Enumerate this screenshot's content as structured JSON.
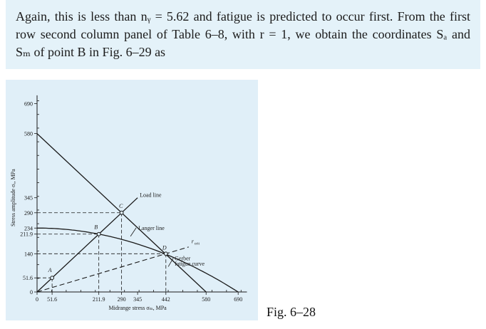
{
  "text_panel": {
    "line1": "Again, this is less than nᵧ = 5.62 and fatigue is predicted to occur first. From the first",
    "line2": "row second column panel of Table 6–8, with r = 1, we obtain the coordinates Sₐ and",
    "line3": "Sₘ of point B in Fig. 6–29 as"
  },
  "figure_caption": "Fig. 6–28",
  "chart_data": {
    "type": "line",
    "title": "",
    "xlabel": "Midrange stress σₘ, MPa",
    "ylabel": "Stress amplitude σₐ, MPa",
    "xlim": [
      0,
      720
    ],
    "ylim": [
      0,
      720
    ],
    "x_ticks": [
      0,
      51.6,
      211.9,
      290,
      345,
      442,
      580,
      690
    ],
    "x_tick_labels": [
      "0",
      "51.6",
      "211.9",
      "290",
      "345",
      "442",
      "580",
      "690"
    ],
    "y_ticks": [
      0,
      51.6,
      140,
      211.9,
      234,
      290,
      345,
      580,
      690
    ],
    "y_tick_labels": [
      "0",
      "51.6",
      "140",
      "211.9",
      "234",
      "290",
      "345",
      "580",
      "690"
    ],
    "series": [
      {
        "name": "Load line",
        "style": "solid",
        "x": [
          0,
          290,
          345
        ],
        "y": [
          0,
          290,
          345
        ]
      },
      {
        "name": "Langer line",
        "style": "solid",
        "x": [
          0,
          580
        ],
        "y": [
          580,
          0
        ]
      },
      {
        "name": "Gerber fatigue curve",
        "style": "solid",
        "x": [
          0,
          100,
          211.9,
          300,
          442,
          550,
          690
        ],
        "y": [
          234,
          229,
          211.9,
          190,
          140,
          85,
          0
        ]
      },
      {
        "name": "r crit",
        "style": "dashed",
        "x": [
          0,
          442,
          520
        ],
        "y": [
          0,
          140,
          164.7
        ]
      }
    ],
    "points": [
      {
        "label": "A",
        "x": 51.6,
        "y": 51.6
      },
      {
        "label": "B",
        "x": 211.9,
        "y": 211.9
      },
      {
        "label": "C",
        "x": 290,
        "y": 290
      },
      {
        "label": "D",
        "x": 442,
        "y": 140
      }
    ],
    "guides": [
      {
        "x": 51.6,
        "y": 51.6
      },
      {
        "x": 211.9,
        "y": 211.9
      },
      {
        "x": 290,
        "y": 290
      },
      {
        "x": 442,
        "y": 140
      }
    ],
    "annotations": [
      {
        "text": "Load line",
        "at": [
          345,
          345
        ]
      },
      {
        "text": "Langer line",
        "at": [
          345,
          235
        ]
      },
      {
        "text": "Gerber",
        "at": [
          460,
          124
        ]
      },
      {
        "text": "fatigue curve",
        "at": [
          460,
          110
        ]
      },
      {
        "text": "r",
        "at": [
          525,
          163
        ]
      },
      {
        "text": "crit",
        "at": [
          525,
          163
        ]
      }
    ],
    "grid": false,
    "legend": "none",
    "colors": {
      "line": "#1a1a1a",
      "panel_bg": "#e0eff8",
      "text_bg": "#e4f2f9"
    }
  }
}
